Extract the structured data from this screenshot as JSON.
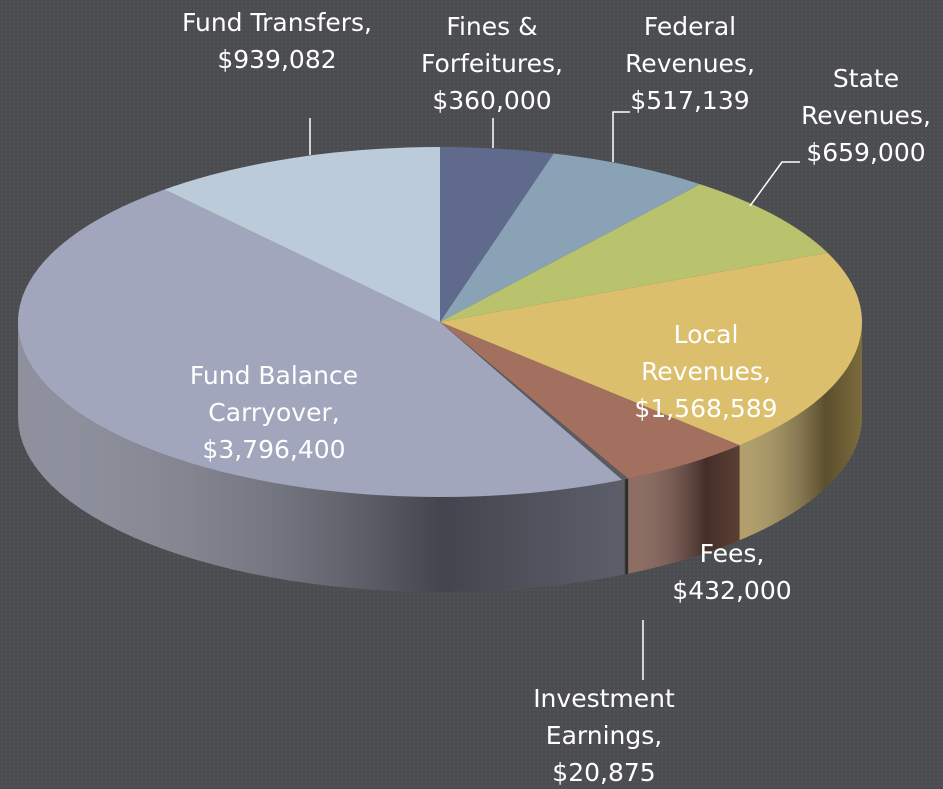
{
  "chart_data": {
    "type": "pie",
    "categories": [
      "Fines & Forfeitures,",
      "Federal Revenues,",
      "State Revenues,",
      "Local Revenues,",
      "Fees,",
      "Investment Earnings,",
      "Fund Balance Carryover,",
      "Fund Transfers,"
    ],
    "values": [
      360000,
      517139,
      659000,
      1568589,
      432000,
      20875,
      3796400,
      939082
    ],
    "value_labels": [
      "$360,000",
      "$517,139",
      "$659,000",
      "$1,568,589",
      "$432,000",
      "$20,875",
      "$3,796,400",
      "$939,082"
    ],
    "colors": [
      "#5f6a8c",
      "#8aa2b6",
      "#b9c26c",
      "#dcbf6c",
      "#a3705f",
      "#5a5a60",
      "#a2a6bc",
      "#bccbda"
    ]
  }
}
